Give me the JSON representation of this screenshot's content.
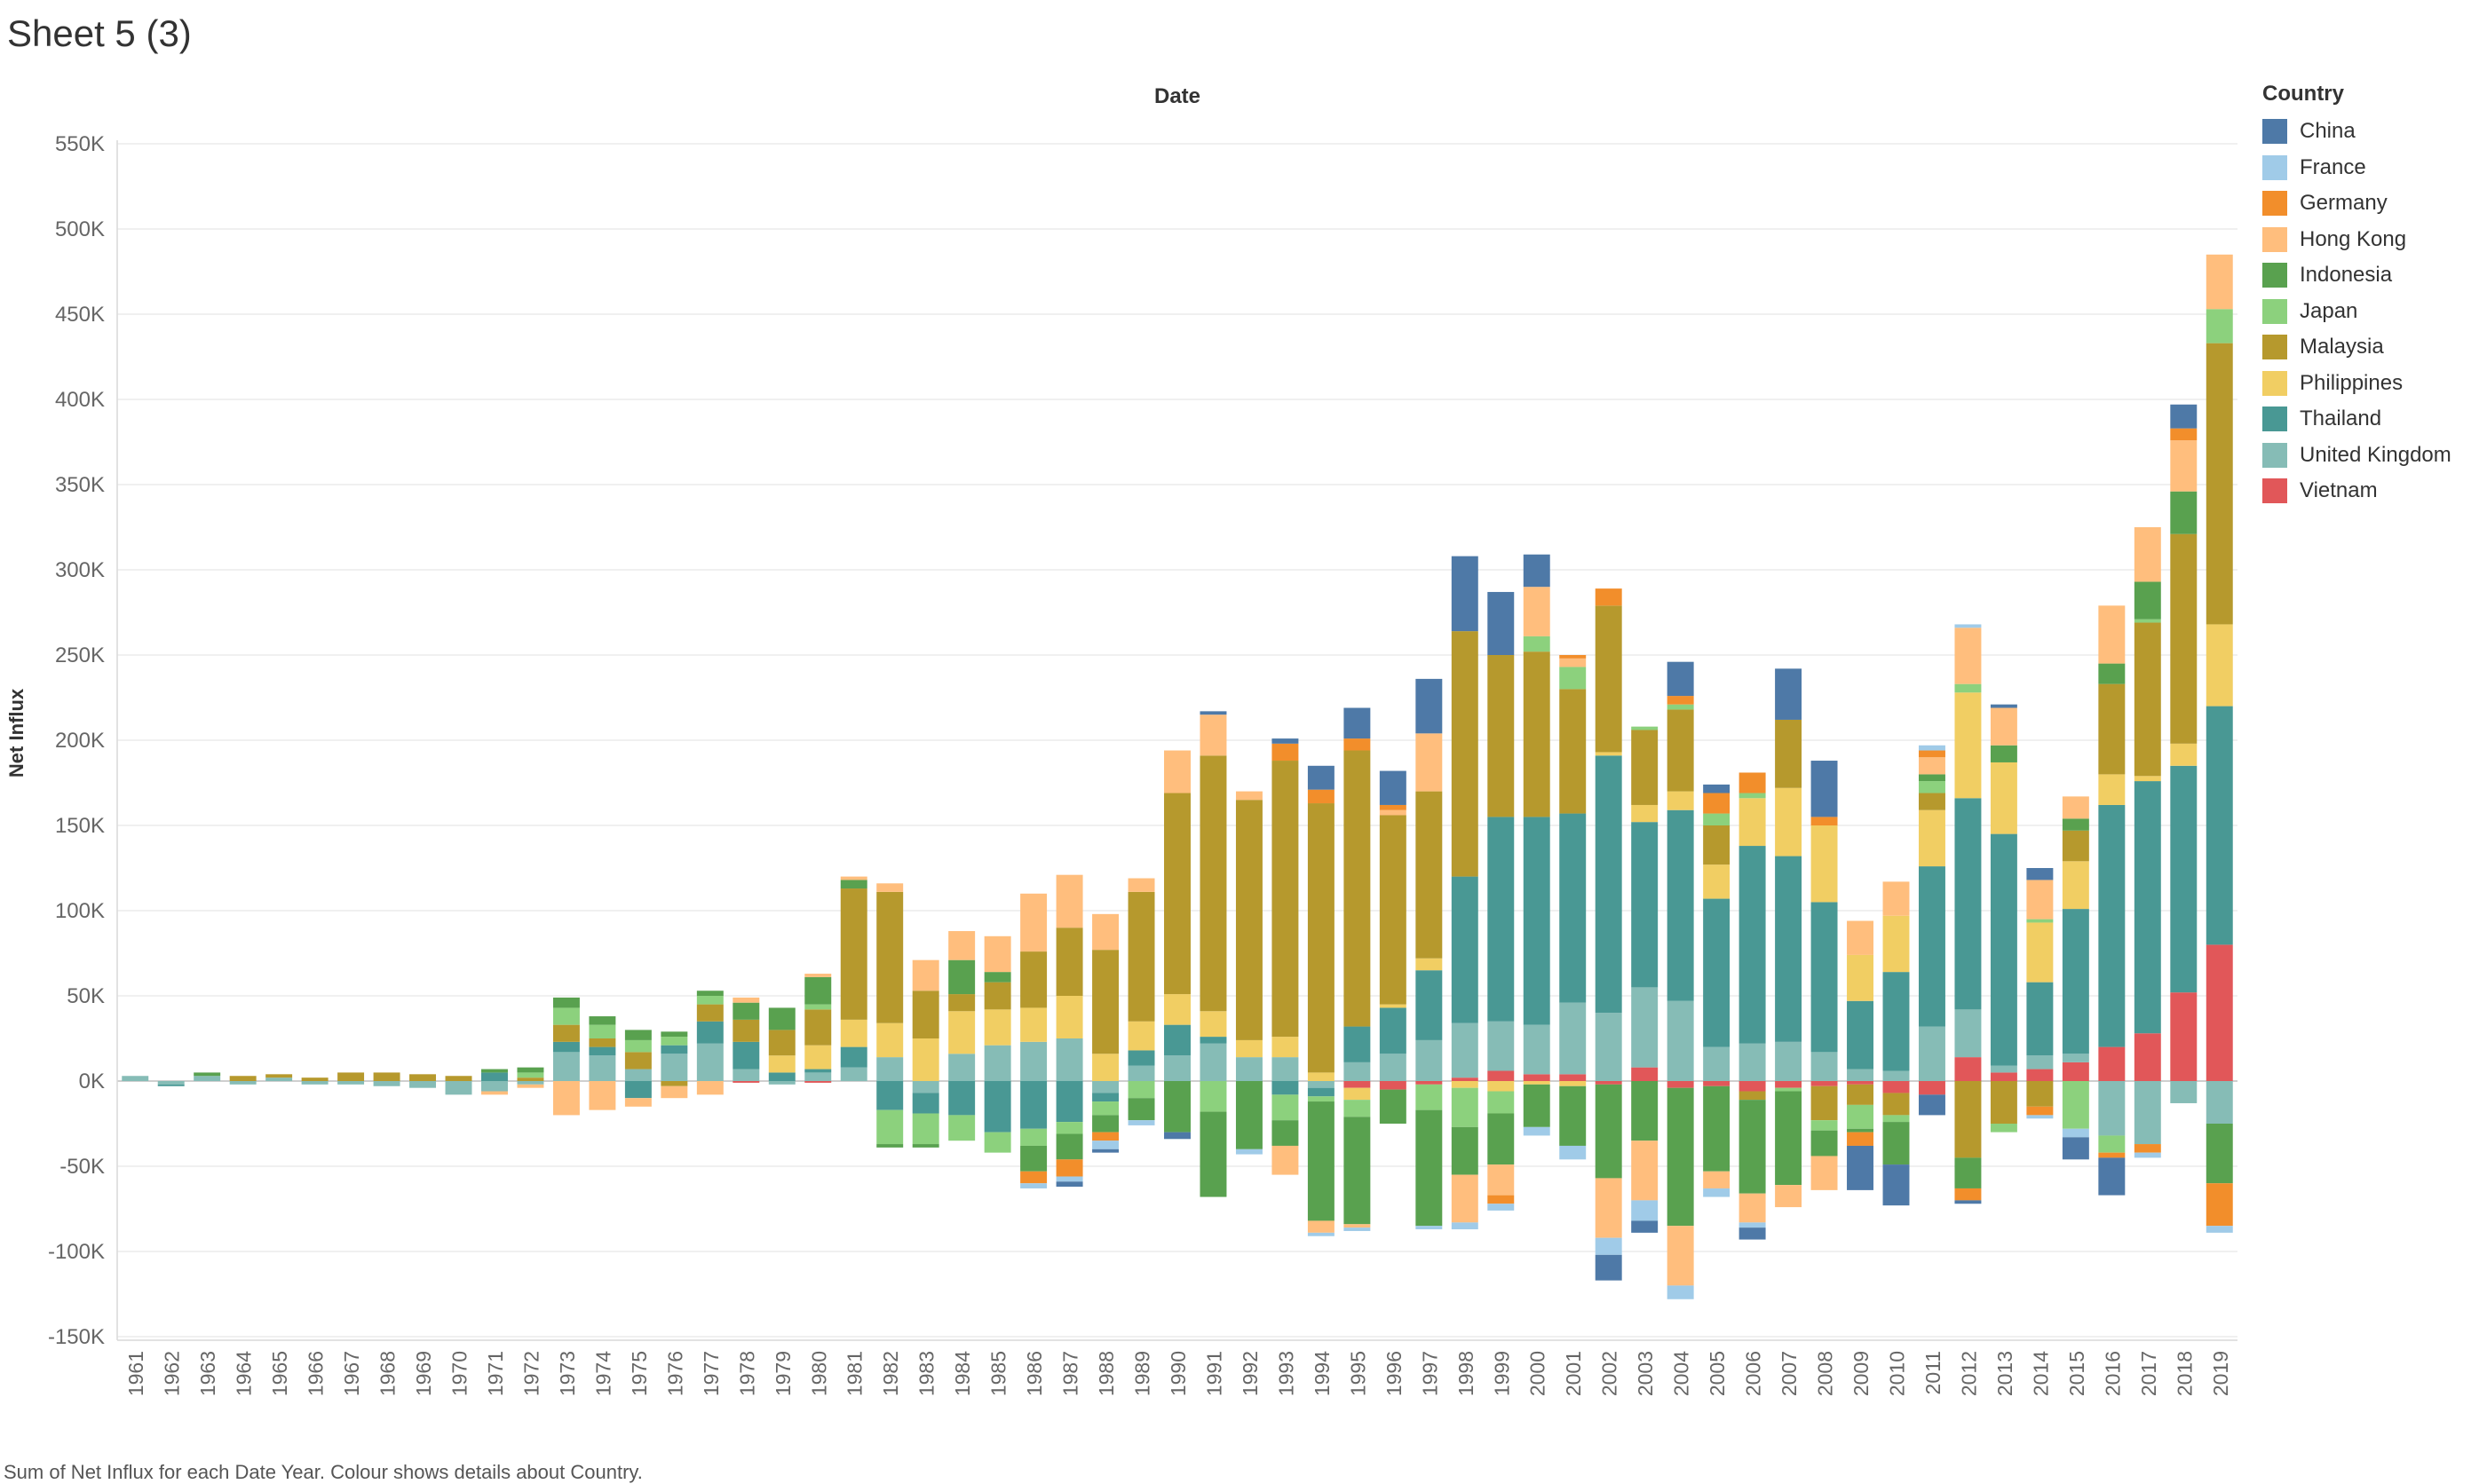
{
  "sheet": {
    "title": "Sheet 5 (3)",
    "caption": "Sum of Net Influx for each Date Year.  Colour shows details about Country."
  },
  "chart_data": {
    "type": "bar",
    "stacked": true,
    "title": "Date",
    "xlabel": "",
    "ylabel": "Net Influx",
    "ylim": [
      -155000,
      560000
    ],
    "yticks": [
      -150000,
      -100000,
      -50000,
      0,
      50000,
      100000,
      150000,
      200000,
      250000,
      300000,
      350000,
      400000,
      450000,
      500000,
      550000
    ],
    "ytick_labels": [
      "-150K",
      "-100K",
      "-50K",
      "0K",
      "50K",
      "100K",
      "150K",
      "200K",
      "250K",
      "300K",
      "350K",
      "400K",
      "450K",
      "500K",
      "550K"
    ],
    "grid": true,
    "legend_title": "Country",
    "legend_position": "right",
    "categories": [
      "1961",
      "1962",
      "1963",
      "1964",
      "1965",
      "1966",
      "1967",
      "1968",
      "1969",
      "1970",
      "1971",
      "1972",
      "1973",
      "1974",
      "1975",
      "1976",
      "1977",
      "1978",
      "1979",
      "1980",
      "1981",
      "1982",
      "1983",
      "1984",
      "1985",
      "1986",
      "1987",
      "1988",
      "1989",
      "1990",
      "1991",
      "1992",
      "1993",
      "1994",
      "1995",
      "1996",
      "1997",
      "1998",
      "1999",
      "2000",
      "2001",
      "2002",
      "2003",
      "2004",
      "2005",
      "2006",
      "2007",
      "2008",
      "2009",
      "2010",
      "2011",
      "2012",
      "2013",
      "2014",
      "2015",
      "2016",
      "2017",
      "2018",
      "2019"
    ],
    "series": [
      {
        "name": "Vietnam",
        "color": "#e15759",
        "values": [
          0,
          0,
          0,
          0,
          0,
          0,
          0,
          0,
          0,
          0,
          0,
          0,
          0,
          0,
          0,
          0,
          0,
          -1000,
          0,
          -1000,
          0,
          0,
          0,
          0,
          0,
          0,
          0,
          0,
          0,
          0,
          0,
          0,
          0,
          0,
          -4000,
          -5000,
          -2000,
          2000,
          6000,
          4000,
          4000,
          -2000,
          8000,
          -4000,
          -3000,
          -6000,
          -4000,
          -3000,
          -2000,
          -7000,
          -8000,
          14000,
          5000,
          7000,
          11000,
          20000,
          28000,
          52000,
          80000
        ]
      },
      {
        "name": "United Kingdom",
        "color": "#86bcb6",
        "values": [
          3000,
          -2000,
          3000,
          -2000,
          2000,
          -2000,
          -2000,
          -3000,
          -4000,
          -8000,
          -6000,
          -2000,
          17000,
          15000,
          7000,
          16000,
          22000,
          7000,
          -2000,
          5000,
          8000,
          14000,
          -7000,
          16000,
          21000,
          23000,
          25000,
          -7000,
          9000,
          15000,
          22000,
          14000,
          14000,
          -4000,
          11000,
          16000,
          24000,
          32000,
          29000,
          29000,
          42000,
          40000,
          47000,
          47000,
          20000,
          22000,
          23000,
          17000,
          7000,
          6000,
          32000,
          28000,
          4000,
          8000,
          5000,
          -32000,
          -37000,
          -13000,
          -25000
        ]
      },
      {
        "name": "Thailand",
        "color": "#499894",
        "values": [
          0,
          -1000,
          0,
          0,
          0,
          0,
          0,
          0,
          0,
          0,
          5000,
          0,
          6000,
          5000,
          -10000,
          5000,
          13000,
          16000,
          5000,
          2000,
          12000,
          -17000,
          -12000,
          -20000,
          -30000,
          -28000,
          -24000,
          -5000,
          9000,
          18000,
          4000,
          0,
          -8000,
          -5000,
          21000,
          27000,
          41000,
          86000,
          120000,
          122000,
          111000,
          151000,
          97000,
          112000,
          87000,
          116000,
          109000,
          88000,
          40000,
          58000,
          94000,
          124000,
          136000,
          43000,
          85000,
          142000,
          148000,
          133000,
          140000
        ]
      },
      {
        "name": "Philippines",
        "color": "#f1ce63",
        "values": [
          0,
          0,
          0,
          0,
          0,
          0,
          0,
          0,
          0,
          0,
          0,
          0,
          0,
          0,
          0,
          0,
          0,
          0,
          10000,
          14000,
          16000,
          20000,
          25000,
          25000,
          21000,
          20000,
          25000,
          16000,
          17000,
          18000,
          15000,
          10000,
          12000,
          5000,
          -7000,
          2000,
          7000,
          -4000,
          -6000,
          -2000,
          -3000,
          2000,
          10000,
          11000,
          20000,
          28000,
          40000,
          45000,
          27000,
          33000,
          33000,
          62000,
          42000,
          35000,
          28000,
          18000,
          3000,
          13000,
          48000
        ]
      },
      {
        "name": "Malaysia",
        "color": "#b6992d",
        "values": [
          0,
          0,
          0,
          3000,
          2000,
          2000,
          5000,
          5000,
          4000,
          3000,
          0,
          2000,
          10000,
          5000,
          10000,
          -3000,
          10000,
          13000,
          15000,
          21000,
          77000,
          77000,
          28000,
          10000,
          16000,
          33000,
          40000,
          61000,
          76000,
          118000,
          150000,
          141000,
          162000,
          158000,
          162000,
          111000,
          98000,
          144000,
          95000,
          97000,
          73000,
          86000,
          44000,
          48000,
          23000,
          -5000,
          40000,
          -20000,
          -12000,
          -13000,
          10000,
          -45000,
          -25000,
          -15000,
          18000,
          53000,
          90000,
          123000,
          165000
        ]
      },
      {
        "name": "Japan",
        "color": "#8cd17d",
        "values": [
          0,
          0,
          0,
          0,
          0,
          0,
          0,
          0,
          0,
          0,
          0,
          3000,
          10000,
          8000,
          7000,
          5000,
          5000,
          0,
          0,
          3000,
          0,
          -20000,
          -18000,
          -15000,
          -12000,
          -10000,
          -7000,
          -8000,
          -10000,
          0,
          -18000,
          0,
          -15000,
          -3000,
          -10000,
          0,
          -15000,
          -23000,
          -13000,
          9000,
          13000,
          0,
          2000,
          3000,
          7000,
          3000,
          -2000,
          -6000,
          -14000,
          -4000,
          7000,
          5000,
          -5000,
          2000,
          -28000,
          -10000,
          2000,
          0,
          20000
        ]
      },
      {
        "name": "Indonesia",
        "color": "#59a14f",
        "values": [
          0,
          0,
          2000,
          0,
          0,
          0,
          0,
          0,
          0,
          0,
          2000,
          3000,
          6000,
          5000,
          6000,
          3000,
          3000,
          10000,
          13000,
          16000,
          5000,
          -2000,
          -2000,
          20000,
          6000,
          -15000,
          -15000,
          -10000,
          -13000,
          -30000,
          -50000,
          -40000,
          -15000,
          -70000,
          -63000,
          -20000,
          -68000,
          -28000,
          -30000,
          -25000,
          -35000,
          -55000,
          -35000,
          -81000,
          -50000,
          -55000,
          -55000,
          -15000,
          -2000,
          -25000,
          4000,
          -18000,
          10000,
          0,
          7000,
          12000,
          22000,
          25000,
          -35000
        ]
      },
      {
        "name": "Hong Kong",
        "color": "#ffbe7d",
        "values": [
          0,
          0,
          0,
          0,
          0,
          0,
          0,
          0,
          0,
          0,
          -2000,
          -2000,
          -20000,
          -17000,
          -5000,
          -7000,
          -8000,
          3000,
          0,
          2000,
          2000,
          5000,
          18000,
          17000,
          21000,
          34000,
          31000,
          21000,
          8000,
          25000,
          24000,
          5000,
          -17000,
          -7000,
          -2000,
          3000,
          34000,
          -28000,
          -18000,
          29000,
          5000,
          -35000,
          -35000,
          -35000,
          -10000,
          -17000,
          -13000,
          -20000,
          20000,
          20000,
          10000,
          33000,
          22000,
          23000,
          13000,
          34000,
          32000,
          30000,
          32000
        ]
      },
      {
        "name": "Germany",
        "color": "#f28e2b",
        "values": [
          0,
          0,
          0,
          0,
          0,
          0,
          0,
          0,
          0,
          0,
          0,
          0,
          0,
          0,
          0,
          0,
          0,
          0,
          0,
          0,
          0,
          0,
          0,
          0,
          0,
          -7000,
          -10000,
          -5000,
          0,
          0,
          0,
          0,
          10000,
          8000,
          7000,
          3000,
          0,
          0,
          -5000,
          0,
          2000,
          10000,
          0,
          5000,
          12000,
          12000,
          0,
          5000,
          -8000,
          0,
          4000,
          -7000,
          0,
          -5000,
          0,
          -3000,
          -5000,
          7000,
          -25000
        ]
      },
      {
        "name": "France",
        "color": "#a0cbe8",
        "values": [
          0,
          0,
          0,
          0,
          0,
          0,
          0,
          0,
          0,
          0,
          0,
          0,
          0,
          0,
          0,
          0,
          0,
          0,
          0,
          0,
          0,
          0,
          0,
          0,
          0,
          -3000,
          -3000,
          -5000,
          -3000,
          0,
          0,
          -3000,
          0,
          -2000,
          -2000,
          0,
          -2000,
          -4000,
          -4000,
          -5000,
          -8000,
          -10000,
          -12000,
          -8000,
          -5000,
          -3000,
          0,
          0,
          0,
          0,
          3000,
          2000,
          0,
          -2000,
          -5000,
          0,
          -3000,
          0,
          -4000
        ]
      },
      {
        "name": "China",
        "color": "#4e79a7",
        "values": [
          0,
          0,
          0,
          0,
          0,
          0,
          0,
          0,
          0,
          0,
          0,
          0,
          0,
          0,
          0,
          0,
          0,
          0,
          0,
          0,
          0,
          0,
          0,
          0,
          0,
          0,
          -3000,
          -2000,
          0,
          -4000,
          2000,
          0,
          3000,
          14000,
          18000,
          20000,
          32000,
          44000,
          37000,
          19000,
          0,
          -15000,
          -7000,
          20000,
          5000,
          -7000,
          30000,
          33000,
          -26000,
          -24000,
          -12000,
          -2000,
          2000,
          7000,
          -13000,
          -22000,
          0,
          14000,
          0
        ]
      }
    ]
  }
}
